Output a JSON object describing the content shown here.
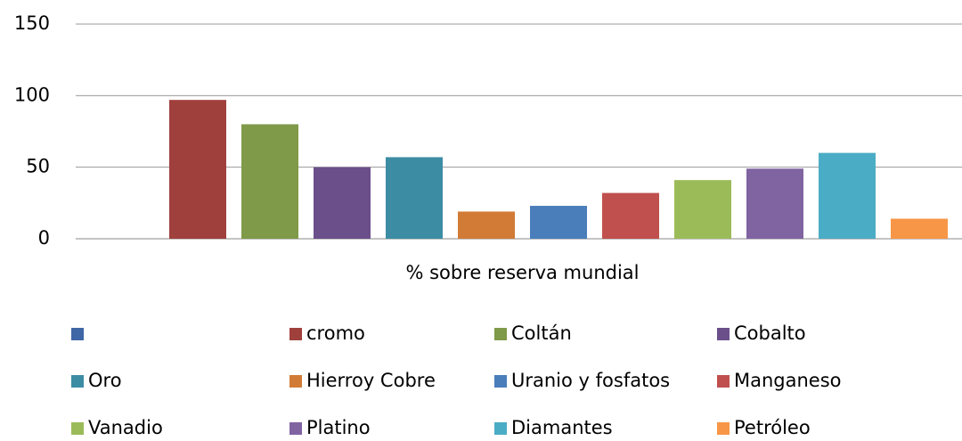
{
  "chart_data": {
    "type": "bar",
    "categories": [
      "% sobre reserva mundial"
    ],
    "series": [
      {
        "name": null,
        "color": "#3f67a6",
        "values": [
          null
        ]
      },
      {
        "name": "cromo",
        "color": "#a0403d",
        "values": [
          97
        ]
      },
      {
        "name": "Coltán",
        "color": "#7f9a48",
        "values": [
          80
        ]
      },
      {
        "name": "Cobalto",
        "color": "#6a4f8b",
        "values": [
          50
        ]
      },
      {
        "name": "Oro",
        "color": "#3c8da3",
        "values": [
          57
        ]
      },
      {
        "name": "Hierroy Cobre",
        "color": "#d17b36",
        "values": [
          19
        ]
      },
      {
        "name": "Uranio y fosfatos",
        "color": "#4a7ebb",
        "values": [
          23
        ]
      },
      {
        "name": "Manganeso",
        "color": "#c0504d",
        "values": [
          32
        ]
      },
      {
        "name": "Vanadio",
        "color": "#9bbb59",
        "values": [
          41
        ]
      },
      {
        "name": "Platino",
        "color": "#8064a2",
        "values": [
          49
        ]
      },
      {
        "name": "Diamantes",
        "color": "#4bacc6",
        "values": [
          60
        ]
      },
      {
        "name": "Petróleo",
        "color": "#f79646",
        "values": [
          14
        ]
      }
    ],
    "ylim": [
      0,
      150
    ],
    "yticks": [
      0,
      50,
      100,
      150
    ],
    "grid": true,
    "legend": "bottom"
  }
}
